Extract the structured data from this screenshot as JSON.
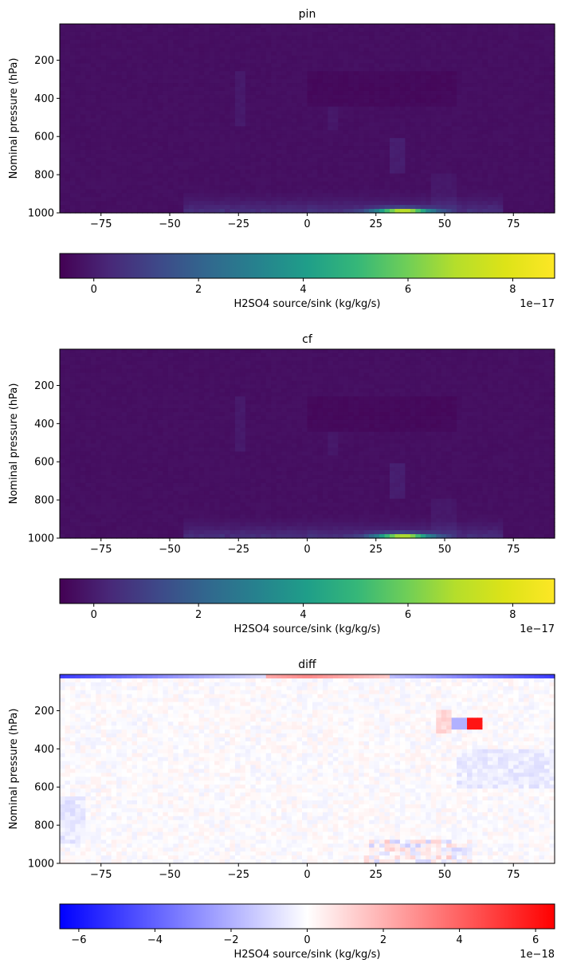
{
  "chart_data": [
    {
      "type": "heatmap",
      "title": "pin",
      "ylabel": "Nominal pressure (hPa)",
      "xlim": [
        -90,
        90
      ],
      "ylim": [
        1000,
        10
      ],
      "x_ticks": [
        -75,
        -50,
        -25,
        0,
        25,
        50,
        75
      ],
      "x_tick_labels": [
        "−75",
        "−50",
        "−25",
        "0",
        "25",
        "50",
        "75"
      ],
      "y_ticks": [
        200,
        400,
        600,
        800,
        1000
      ],
      "y_tick_labels": [
        "200",
        "400",
        "600",
        "800",
        "1000"
      ],
      "colormap": "viridis",
      "colorbar": {
        "label": "H2SO4 source/sink (kg/kg/s)",
        "range": [
          -0.65,
          8.8
        ],
        "ticks": [
          0,
          2,
          4,
          6,
          8
        ],
        "tick_labels": [
          "0",
          "2",
          "4",
          "6",
          "8"
        ],
        "offset_text": "1e−17",
        "orientation": "horizontal"
      },
      "features": [
        {
          "description": "near-zero background",
          "value": 0.0
        },
        {
          "description": "surface maximum",
          "lat_range": [
            25,
            45
          ],
          "pressure_range": [
            960,
            1000
          ],
          "value": 8.8
        },
        {
          "description": "surface band",
          "lat_range": [
            -45,
            70
          ],
          "pressure_range": [
            920,
            1000
          ],
          "value": 0.6
        }
      ]
    },
    {
      "type": "heatmap",
      "title": "cf",
      "ylabel": "Nominal pressure (hPa)",
      "xlim": [
        -90,
        90
      ],
      "ylim": [
        1000,
        10
      ],
      "x_ticks": [
        -75,
        -50,
        -25,
        0,
        25,
        50,
        75
      ],
      "x_tick_labels": [
        "−75",
        "−50",
        "−25",
        "0",
        "25",
        "50",
        "75"
      ],
      "y_ticks": [
        200,
        400,
        600,
        800,
        1000
      ],
      "y_tick_labels": [
        "200",
        "400",
        "600",
        "800",
        "1000"
      ],
      "colormap": "viridis",
      "colorbar": {
        "label": "H2SO4 source/sink (kg/kg/s)",
        "range": [
          -0.65,
          8.8
        ],
        "ticks": [
          0,
          2,
          4,
          6,
          8
        ],
        "tick_labels": [
          "0",
          "2",
          "4",
          "6",
          "8"
        ],
        "offset_text": "1e−17",
        "orientation": "horizontal"
      },
      "features": [
        {
          "description": "near-zero background",
          "value": 0.0
        },
        {
          "description": "surface maximum",
          "lat_range": [
            25,
            45
          ],
          "pressure_range": [
            960,
            1000
          ],
          "value": 8.5
        },
        {
          "description": "surface band",
          "lat_range": [
            -45,
            70
          ],
          "pressure_range": [
            920,
            1000
          ],
          "value": 0.6
        }
      ]
    },
    {
      "type": "heatmap",
      "title": "diff",
      "ylabel": "Nominal pressure (hPa)",
      "xlim": [
        -90,
        90
      ],
      "ylim": [
        1000,
        10
      ],
      "x_ticks": [
        -75,
        -50,
        -25,
        0,
        25,
        50,
        75
      ],
      "x_tick_labels": [
        "−75",
        "−50",
        "−25",
        "0",
        "25",
        "50",
        "75"
      ],
      "y_ticks": [
        200,
        400,
        600,
        800,
        1000
      ],
      "y_tick_labels": [
        "200",
        "400",
        "600",
        "800",
        "1000"
      ],
      "colormap": "bwr",
      "colorbar": {
        "label": "H2SO4 source/sink (kg/kg/s)",
        "range": [
          -6.5,
          6.5
        ],
        "ticks": [
          -6,
          -4,
          -2,
          0,
          2,
          4,
          6
        ],
        "tick_labels": [
          "−6",
          "−4",
          "−2",
          "0",
          "2",
          "4",
          "6"
        ],
        "offset_text": "1e−18",
        "orientation": "horizontal"
      },
      "features": [
        {
          "description": "near-zero background",
          "value": 0.0
        },
        {
          "description": "positive hotspot",
          "lat_range": [
            59,
            63
          ],
          "pressure_range": [
            230,
            290
          ],
          "value": 6.0
        },
        {
          "description": "negative patch",
          "lat_range": [
            53,
            58
          ],
          "pressure_range": [
            230,
            280
          ],
          "value": -2.0
        },
        {
          "description": "top-row negative",
          "lat_range": [
            -90,
            90
          ],
          "pressure_range": [
            10,
            20
          ],
          "value": -5.0
        }
      ]
    }
  ]
}
